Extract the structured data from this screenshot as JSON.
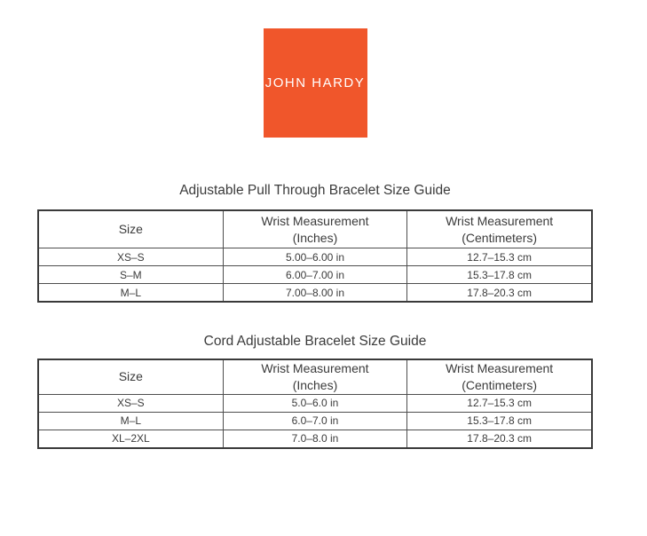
{
  "logo": {
    "brand": "JOHN HARDY",
    "background": "#F0562B",
    "text_color": "#FFFFFF"
  },
  "tables": [
    {
      "title": "Adjustable Pull Through Bracelet Size Guide",
      "headers": [
        "Size",
        "Wrist Measurement\n(Inches)",
        "Wrist Measurement\n(Centimeters)"
      ],
      "rows": [
        [
          "XS–S",
          "5.00–6.00 in",
          "12.7–15.3 cm"
        ],
        [
          "S–M",
          "6.00–7.00 in",
          "15.3–17.8 cm"
        ],
        [
          "M–L",
          "7.00–8.00 in",
          "17.8–20.3 cm"
        ]
      ]
    },
    {
      "title": "Cord Adjustable Bracelet Size Guide",
      "headers": [
        "Size",
        "Wrist Measurement\n(Inches)",
        "Wrist Measurement\n(Centimeters)"
      ],
      "rows": [
        [
          "XS–S",
          "5.0–6.0 in",
          "12.7–15.3 cm"
        ],
        [
          "M–L",
          "6.0–7.0 in",
          "15.3–17.8 cm"
        ],
        [
          "XL–2XL",
          "7.0–8.0 in",
          "17.8–20.3 cm"
        ]
      ]
    }
  ],
  "colors": {
    "text": "#3B3B3B",
    "table_border": "#3A3A3A"
  }
}
